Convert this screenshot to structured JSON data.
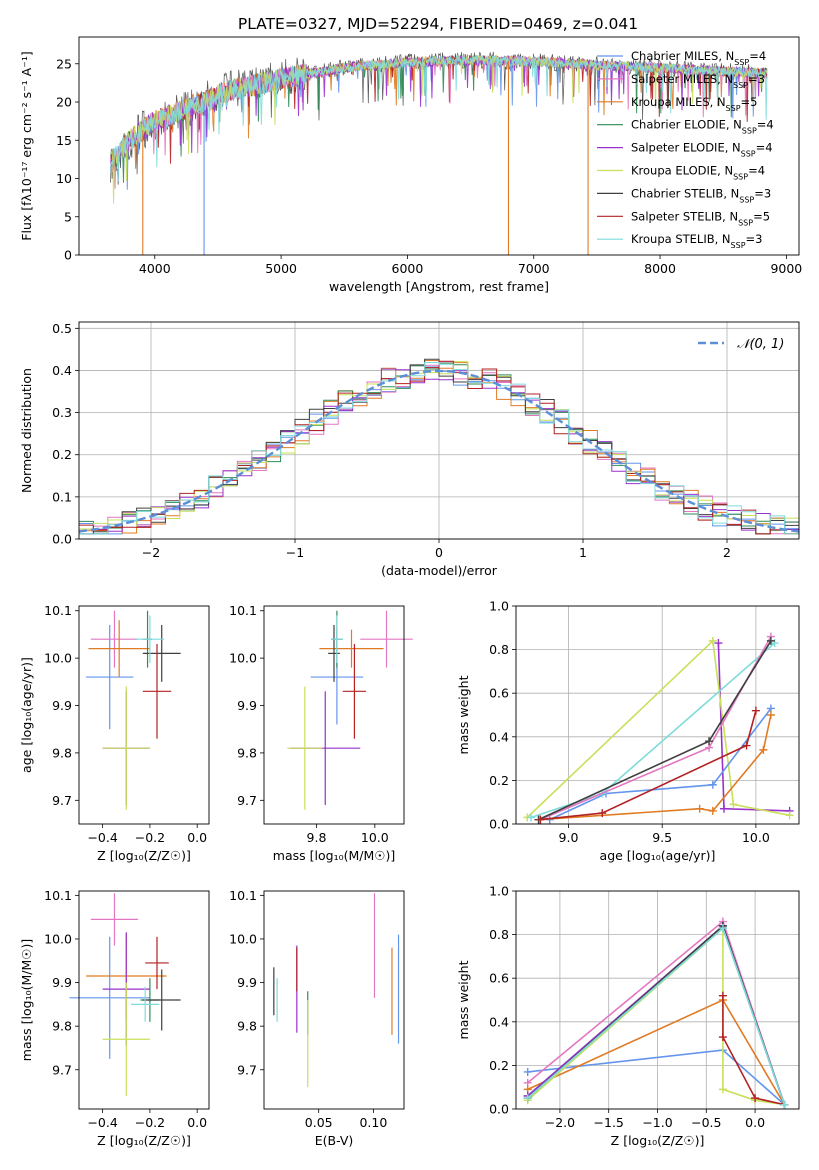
{
  "title": "PLATE=0327, MJD=52294, FIBERID=0469, z=0.041",
  "colors": {
    "chabrier_miles": "#6495ed",
    "salpeter_miles": "#e377c2",
    "kroupa_miles": "#e07b24",
    "chabrier_elodie": "#2e8b57",
    "salpeter_elodie": "#9932cc",
    "kroupa_elodie": "#c8e05a",
    "chabrier_stelib": "#404040",
    "salpeter_stelib": "#b22222",
    "kroupa_stelib": "#7fdbdb"
  },
  "chart_data": [
    {
      "id": "spectrum",
      "type": "line",
      "title": "PLATE=0327, MJD=52294, FIBERID=0469, z=0.041",
      "xlabel": "wavelength [Angstrom, rest frame]",
      "ylabel": "Flux [fλ10⁻¹⁷ erg cm⁻² s⁻¹ A⁻¹]",
      "xlim": [
        3400,
        9100
      ],
      "ylim": [
        0,
        28.5
      ],
      "xticks": [
        4000,
        5000,
        6000,
        7000,
        8000,
        9000
      ],
      "yticks": [
        0,
        5,
        10,
        15,
        20,
        25
      ],
      "legend": "top-right",
      "series": [
        {
          "name": "Chabrier MILES, N_SSP=4",
          "color": "#6495ed"
        },
        {
          "name": "Salpeter MILES, N_SSP=3",
          "color": "#e377c2"
        },
        {
          "name": "Kroupa MILES, N_SSP=5",
          "color": "#e07b24"
        },
        {
          "name": "Chabrier ELODIE, N_SSP=4",
          "color": "#2e8b57"
        },
        {
          "name": "Salpeter ELODIE, N_SSP=4",
          "color": "#9932cc"
        },
        {
          "name": "Kroupa ELODIE, N_SSP=4",
          "color": "#c8e05a"
        },
        {
          "name": "Chabrier STELIB, N_SSP=3",
          "color": "#404040"
        },
        {
          "name": "Salpeter STELIB, N_SSP=5",
          "color": "#b22222"
        },
        {
          "name": "Kroupa STELIB, N_SSP=3",
          "color": "#7fdbdb"
        }
      ],
      "continuum": [
        [
          3650,
          12
        ],
        [
          3800,
          15
        ],
        [
          4000,
          17.5
        ],
        [
          4300,
          19.5
        ],
        [
          4600,
          21.5
        ],
        [
          5000,
          23
        ],
        [
          5500,
          24.5
        ],
        [
          6000,
          25.2
        ],
        [
          6500,
          25.5
        ],
        [
          7000,
          25.3
        ],
        [
          7500,
          24.8
        ],
        [
          8000,
          24.5
        ],
        [
          8500,
          24
        ],
        [
          8800,
          23.8
        ]
      ],
      "dropouts": [
        {
          "x": 3905,
          "color": "#e07b24"
        },
        {
          "x": 4390,
          "color": "#6495ed"
        },
        {
          "x": 6800,
          "color": "#e07b24"
        },
        {
          "x": 7430,
          "color": "#e07b24"
        }
      ]
    },
    {
      "id": "residuals",
      "type": "line",
      "xlabel": "(data-model)/error",
      "ylabel": "Normed distribution",
      "xlim": [
        -2.5,
        2.5
      ],
      "ylim": [
        0,
        0.515
      ],
      "xticks": [
        -2,
        -1,
        0,
        1,
        2
      ],
      "xticklabels": [
        "−2",
        "−1",
        "0",
        "1",
        "2"
      ],
      "yticks": [
        0,
        0.1,
        0.2,
        0.3,
        0.4,
        0.5
      ],
      "yticklabels": [
        "0.0",
        "0.1",
        "0.2",
        "0.3",
        "0.4",
        "0.5"
      ],
      "grid": true,
      "legend_label": "𝒩(0, 1)",
      "legend": "top-right",
      "bin_width": 0.1
    },
    {
      "id": "age-vs-Z",
      "type": "scatter",
      "xlabel": "Z [log₁₀(Z/Z☉)]",
      "ylabel": "age  [log₁₀(age/yr)]",
      "xlim": [
        -0.5,
        0.05
      ],
      "ylim": [
        9.65,
        10.11
      ],
      "xticks": [
        -0.4,
        -0.2,
        0.0
      ],
      "xticklabels": [
        "−0.4",
        "−0.2",
        "0.0"
      ],
      "yticks": [
        9.7,
        9.8,
        9.9,
        10.0,
        10.1
      ],
      "yticklabels": [
        "9.7",
        "9.8",
        "9.9",
        "10.0",
        "10.1"
      ],
      "points": [
        {
          "x": -0.37,
          "xerr": 0.1,
          "y": 9.96,
          "yerr": 0.11,
          "color": "#6495ed"
        },
        {
          "x": -0.35,
          "xerr": 0.1,
          "y": 10.04,
          "yerr": 0.06,
          "color": "#e377c2"
        },
        {
          "x": -0.33,
          "xerr": 0.13,
          "y": 10.02,
          "yerr": 0.06,
          "color": "#e07b24"
        },
        {
          "x": -0.21,
          "xerr": 0.02,
          "y": 10.04,
          "yerr": 0.06,
          "color": "#2e8b57"
        },
        {
          "x": -0.3,
          "xerr": 0.1,
          "y": 9.81,
          "yerr": 0.12,
          "color": "#9932cc"
        },
        {
          "x": -0.3,
          "xerr": 0.1,
          "y": 9.81,
          "yerr": 0.13,
          "color": "#c8e05a"
        },
        {
          "x": -0.15,
          "xerr": 0.08,
          "y": 10.01,
          "yerr": 0.06,
          "color": "#404040"
        },
        {
          "x": -0.17,
          "xerr": 0.06,
          "y": 9.93,
          "yerr": 0.1,
          "color": "#b22222"
        },
        {
          "x": -0.2,
          "xerr": 0.06,
          "y": 10.04,
          "yerr": 0.05,
          "color": "#7fdbdb"
        }
      ]
    },
    {
      "id": "age-vs-mass",
      "type": "scatter",
      "xlabel": "mass [log₁₀(M/M☉)]",
      "ylabel": "",
      "xlim": [
        9.62,
        10.1
      ],
      "ylim": [
        9.65,
        10.11
      ],
      "xticks": [
        9.8,
        10.0
      ],
      "xticklabels": [
        "9.8",
        "10.0"
      ],
      "yticks": [
        9.7,
        9.8,
        9.9,
        10.0,
        10.1
      ],
      "yticklabels": [
        "9.7",
        "9.8",
        "9.9",
        "10.0",
        "10.1"
      ],
      "points": [
        {
          "x": 9.87,
          "xerr": 0.09,
          "y": 9.96,
          "yerr": 0.1,
          "color": "#6495ed"
        },
        {
          "x": 10.04,
          "xerr": 0.09,
          "y": 10.04,
          "yerr": 0.06,
          "color": "#e377c2"
        },
        {
          "x": 9.92,
          "xerr": 0.11,
          "y": 10.02,
          "yerr": 0.04,
          "color": "#e07b24"
        },
        {
          "x": 9.87,
          "xerr": 0.02,
          "y": 10.04,
          "yerr": 0.06,
          "color": "#2e8b57"
        },
        {
          "x": 9.83,
          "xerr": 0.12,
          "y": 9.81,
          "yerr": 0.12,
          "color": "#9932cc"
        },
        {
          "x": 9.76,
          "xerr": 0.06,
          "y": 9.81,
          "yerr": 0.13,
          "color": "#c8e05a"
        },
        {
          "x": 9.86,
          "xerr": 0.02,
          "y": 10.01,
          "yerr": 0.06,
          "color": "#404040"
        },
        {
          "x": 9.93,
          "xerr": 0.04,
          "y": 9.93,
          "yerr": 0.1,
          "color": "#b22222"
        },
        {
          "x": 9.87,
          "xerr": 0.02,
          "y": 10.04,
          "yerr": 0.05,
          "color": "#7fdbdb"
        }
      ]
    },
    {
      "id": "weight-vs-age",
      "type": "line",
      "xlabel": "age  [log₁₀(age/yr)]",
      "ylabel": "mass weight",
      "xlim": [
        8.72,
        10.23
      ],
      "ylim": [
        0,
        1.0
      ],
      "xticks": [
        9.0,
        9.5,
        10.0
      ],
      "xticklabels": [
        "9.0",
        "9.5",
        "10.0"
      ],
      "yticks": [
        0,
        0.2,
        0.4,
        0.6,
        0.8,
        1.0
      ],
      "yticklabels": [
        "0.0",
        "0.2",
        "0.4",
        "0.6",
        "0.8",
        "1.0"
      ],
      "grid": true,
      "series": [
        {
          "color": "#9932cc",
          "x": [
            9.8,
            9.83,
            10.18
          ],
          "y": [
            0.83,
            0.07,
            0.06
          ]
        },
        {
          "color": "#c8e05a",
          "x": [
            8.78,
            9.77,
            9.88,
            10.18
          ],
          "y": [
            0.03,
            0.84,
            0.09,
            0.04
          ]
        },
        {
          "color": "#6495ed",
          "x": [
            8.9,
            9.2,
            9.77,
            10.08
          ],
          "y": [
            0.02,
            0.14,
            0.18,
            0.53
          ]
        },
        {
          "color": "#7fdbdb",
          "x": [
            8.8,
            9.18,
            10.1
          ],
          "y": [
            0.03,
            0.14,
            0.83
          ]
        },
        {
          "color": "#e377c2",
          "x": [
            8.85,
            9.75,
            10.08
          ],
          "y": [
            0.02,
            0.35,
            0.86
          ]
        },
        {
          "color": "#404040",
          "x": [
            8.84,
            9.75,
            10.08
          ],
          "y": [
            0.02,
            0.38,
            0.84
          ]
        },
        {
          "color": "#e07b24",
          "x": [
            8.85,
            9.7,
            9.77,
            10.04,
            10.08
          ],
          "y": [
            0.02,
            0.07,
            0.06,
            0.34,
            0.5
          ]
        },
        {
          "color": "#b22222",
          "x": [
            8.85,
            9.18,
            9.95,
            10.0
          ],
          "y": [
            0.02,
            0.05,
            0.36,
            0.52
          ]
        }
      ]
    },
    {
      "id": "mass-vs-Z",
      "type": "scatter",
      "xlabel": "Z [log₁₀(Z/Z☉)]",
      "ylabel": "mass [log₁₀(M/M☉)]",
      "xlim": [
        -0.5,
        0.05
      ],
      "ylim": [
        9.61,
        10.11
      ],
      "xticks": [
        -0.4,
        -0.2,
        0.0
      ],
      "xticklabels": [
        "−0.4",
        "−0.2",
        "0.0"
      ],
      "yticks": [
        9.7,
        9.8,
        9.9,
        10.0,
        10.1
      ],
      "yticklabels": [
        "9.7",
        "9.8",
        "9.9",
        "10.0",
        "10.1"
      ],
      "points": [
        {
          "x": -0.37,
          "xerr": 0.17,
          "y": 9.865,
          "yerr": 0.14,
          "color": "#6495ed"
        },
        {
          "x": -0.35,
          "xerr": 0.1,
          "y": 10.045,
          "yerr": 0.06,
          "color": "#e377c2"
        },
        {
          "x": -0.3,
          "xerr": 0.17,
          "y": 9.915,
          "yerr": 0.1,
          "color": "#e07b24"
        },
        {
          "x": -0.2,
          "xerr": 0.04,
          "y": 9.86,
          "yerr": 0.05,
          "color": "#2e8b57"
        },
        {
          "x": -0.3,
          "xerr": 0.1,
          "y": 9.885,
          "yerr": 0.13,
          "color": "#9932cc"
        },
        {
          "x": -0.3,
          "xerr": 0.1,
          "y": 9.77,
          "yerr": 0.13,
          "color": "#c8e05a"
        },
        {
          "x": -0.15,
          "xerr": 0.08,
          "y": 9.86,
          "yerr": 0.07,
          "color": "#404040"
        },
        {
          "x": -0.17,
          "xerr": 0.05,
          "y": 9.945,
          "yerr": 0.06,
          "color": "#b22222"
        },
        {
          "x": -0.22,
          "xerr": 0.06,
          "y": 9.85,
          "yerr": 0.04,
          "color": "#7fdbdb"
        }
      ]
    },
    {
      "id": "mass-vs-EBV",
      "type": "scatter",
      "xlabel": "E(B-V)",
      "ylabel": "",
      "xlim": [
        0.0,
        0.128
      ],
      "ylim": [
        9.61,
        10.11
      ],
      "xticks": [
        0.05,
        0.1
      ],
      "xticklabels": [
        "0.05",
        "0.10"
      ],
      "yticks": [
        9.7,
        9.8,
        9.9,
        10.0,
        10.1
      ],
      "yticklabels": [
        "9.7",
        "9.8",
        "9.9",
        "10.0",
        "10.1"
      ],
      "points": [
        {
          "x": 0.123,
          "y": 9.885,
          "yerr": 0.125,
          "color": "#6495ed"
        },
        {
          "x": 0.101,
          "y": 9.985,
          "yerr": 0.12,
          "color": "#e377c2"
        },
        {
          "x": 0.117,
          "y": 9.88,
          "yerr": 0.1,
          "color": "#e07b24"
        },
        {
          "x": 0.04,
          "y": 9.83,
          "yerr": 0.05,
          "color": "#2e8b57"
        },
        {
          "x": 0.03,
          "y": 9.885,
          "yerr": 0.1,
          "color": "#9932cc"
        },
        {
          "x": 0.04,
          "y": 9.76,
          "yerr": 0.1,
          "color": "#c8e05a"
        },
        {
          "x": 0.009,
          "y": 9.88,
          "yerr": 0.055,
          "color": "#404040"
        },
        {
          "x": 0.03,
          "y": 9.93,
          "yerr": 0.05,
          "color": "#b22222"
        },
        {
          "x": 0.012,
          "y": 9.86,
          "yerr": 0.05,
          "color": "#7fdbdb"
        }
      ]
    },
    {
      "id": "weight-vs-Z",
      "type": "line",
      "xlabel": "Z [log₁₀(Z/Z☉)]",
      "ylabel": "mass weight",
      "xlim": [
        -2.45,
        0.45
      ],
      "ylim": [
        0,
        1.0
      ],
      "xticks": [
        -2.0,
        -1.5,
        -1.0,
        -0.5,
        0.0
      ],
      "xticklabels": [
        "−2.0",
        "−1.5",
        "−1.0",
        "−0.5",
        "0.0"
      ],
      "yticks": [
        0,
        0.2,
        0.4,
        0.6,
        0.8,
        1.0
      ],
      "yticklabels": [
        "0.0",
        "0.2",
        "0.4",
        "0.6",
        "0.8",
        "1.0"
      ],
      "grid": true,
      "series": [
        {
          "color": "#6495ed",
          "x": [
            -2.33,
            -0.33,
            0.3
          ],
          "y": [
            0.17,
            0.27,
            0.02
          ]
        },
        {
          "color": "#e377c2",
          "x": [
            -2.33,
            -0.33,
            0.3
          ],
          "y": [
            0.12,
            0.86,
            0.02
          ]
        },
        {
          "color": "#e07b24",
          "x": [
            -2.33,
            -0.33,
            0.3
          ],
          "y": [
            0.09,
            0.5,
            0.02
          ]
        },
        {
          "color": "#2e8b57",
          "x": [
            -2.33,
            -0.33,
            0.3
          ],
          "y": [
            0.06,
            0.83,
            0.02
          ]
        },
        {
          "color": "#9932cc",
          "x": [
            -2.33,
            -0.33,
            0.3
          ],
          "y": [
            0.06,
            0.84,
            0.02
          ]
        },
        {
          "color": "#c8e05a",
          "x": [
            -2.33,
            -0.33,
            -0.33,
            0.0,
            0.3
          ],
          "y": [
            0.04,
            0.83,
            0.09,
            0.04,
            0.02
          ]
        },
        {
          "color": "#404040",
          "x": [
            -2.33,
            -0.33,
            0.3
          ],
          "y": [
            0.05,
            0.84,
            0.02
          ]
        },
        {
          "color": "#b22222",
          "x": [
            -0.33,
            -0.33,
            0.0,
            0.3
          ],
          "y": [
            0.52,
            0.33,
            0.05,
            0.02
          ]
        },
        {
          "color": "#7fdbdb",
          "x": [
            -2.33,
            -0.33,
            0.3
          ],
          "y": [
            0.05,
            0.83,
            0.02
          ]
        }
      ]
    }
  ]
}
